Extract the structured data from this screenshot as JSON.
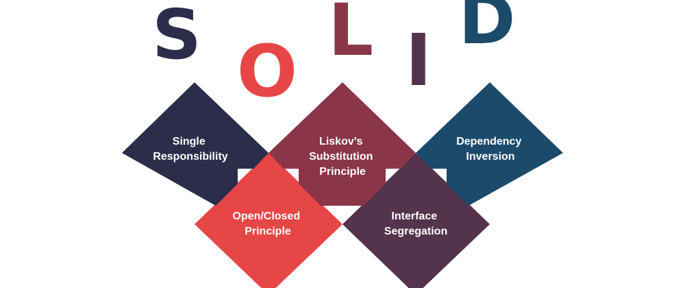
{
  "title_letters": [
    {
      "char": "S",
      "color": "#2c2d4b"
    },
    {
      "char": "O",
      "color": "#e64646"
    },
    {
      "char": "L",
      "color": "#8a3548"
    },
    {
      "char": "I",
      "color": "#54334d"
    },
    {
      "char": "D",
      "color": "#1b4a6b"
    }
  ],
  "principles": [
    {
      "lines": [
        "Single",
        "Responsibility"
      ],
      "color": "#2c2d4b"
    },
    {
      "lines": [
        "Open/Closed",
        "Principle"
      ],
      "color": "#e64646"
    },
    {
      "lines": [
        "Liskov’s",
        "Substitution",
        "Principle"
      ],
      "color": "#8a3548"
    },
    {
      "lines": [
        "Interface",
        "Segregation"
      ],
      "color": "#54334d"
    },
    {
      "lines": [
        "Dependency",
        "Inversion"
      ],
      "color": "#1b4a6b"
    }
  ]
}
